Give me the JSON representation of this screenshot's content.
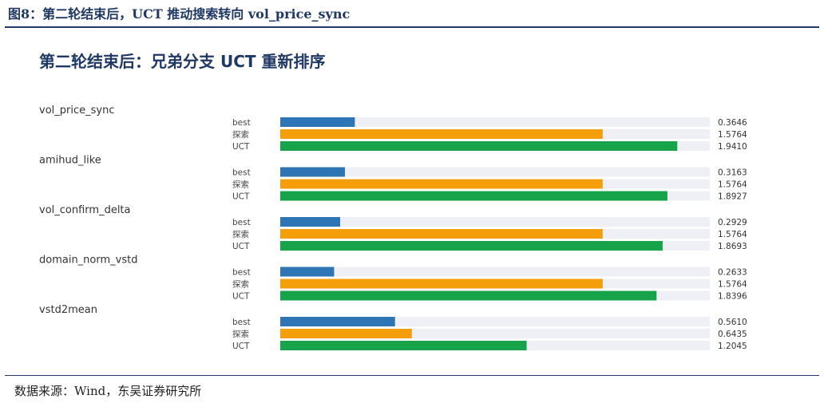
{
  "figure": {
    "caption": "图8：第二轮结束后，UCT 推动搜索转向 vol_price_sync",
    "source": "数据来源：Wind，东吴证券研究所"
  },
  "chart_data": {
    "type": "bar",
    "orientation": "horizontal",
    "title": "第二轮结束后：兄弟分支 UCT 重新排序",
    "xlim": [
      0,
      2.1
    ],
    "grid": false,
    "legend": "none",
    "colors": {
      "best": "#2e75b6",
      "探索": "#f59e0b",
      "UCT": "#16a34a",
      "track": "#eef0f5"
    },
    "row_labels": [
      "best",
      "探索",
      "UCT"
    ],
    "groups": [
      {
        "name": "vol_price_sync",
        "values": [
          0.3646,
          1.5764,
          1.941
        ],
        "labels": [
          "0.3646",
          "1.5764",
          "1.9410"
        ]
      },
      {
        "name": "amihud_like",
        "values": [
          0.3163,
          1.5764,
          1.8927
        ],
        "labels": [
          "0.3163",
          "1.5764",
          "1.8927"
        ]
      },
      {
        "name": "vol_confirm_delta",
        "values": [
          0.2929,
          1.5764,
          1.8693
        ],
        "labels": [
          "0.2929",
          "1.5764",
          "1.8693"
        ]
      },
      {
        "name": "domain_norm_vstd",
        "values": [
          0.2633,
          1.5764,
          1.8396
        ],
        "labels": [
          "0.2633",
          "1.5764",
          "1.8396"
        ]
      },
      {
        "name": "vstd2mean",
        "values": [
          0.561,
          0.6435,
          1.2045
        ],
        "labels": [
          "0.5610",
          "0.6435",
          "1.2045"
        ]
      }
    ]
  }
}
